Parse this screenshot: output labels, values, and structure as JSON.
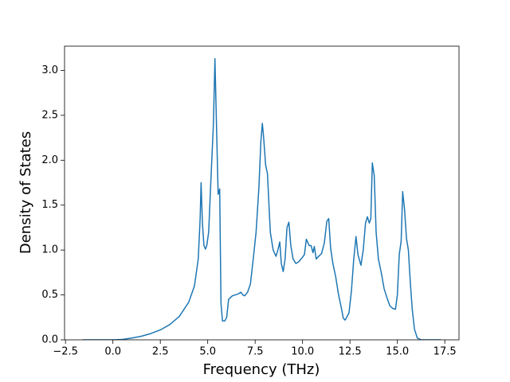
{
  "chart_data": {
    "type": "line",
    "xlabel": "Frequency (THz)",
    "ylabel": "Density of States",
    "x": [
      -1.6,
      0,
      0.5,
      1,
      1.5,
      2,
      2.5,
      3,
      3.5,
      4,
      4.3,
      4.5,
      4.6,
      4.65,
      4.72,
      4.8,
      4.88,
      4.95,
      5.05,
      5.15,
      5.3,
      5.38,
      5.45,
      5.55,
      5.63,
      5.7,
      5.78,
      5.9,
      6.0,
      6.1,
      6.3,
      6.6,
      6.75,
      6.85,
      6.95,
      7.1,
      7.25,
      7.4,
      7.55,
      7.7,
      7.8,
      7.88,
      7.95,
      8.05,
      8.15,
      8.3,
      8.45,
      8.6,
      8.7,
      8.8,
      8.88,
      8.98,
      9.08,
      9.18,
      9.28,
      9.38,
      9.5,
      9.65,
      9.8,
      10.0,
      10.1,
      10.2,
      10.35,
      10.45,
      10.55,
      10.62,
      10.72,
      10.85,
      11.0,
      11.15,
      11.28,
      11.38,
      11.48,
      11.6,
      11.75,
      11.9,
      12.05,
      12.15,
      12.25,
      12.45,
      12.58,
      12.7,
      12.82,
      12.92,
      13.08,
      13.2,
      13.32,
      13.42,
      13.52,
      13.6,
      13.68,
      13.78,
      13.88,
      14.0,
      14.15,
      14.3,
      14.45,
      14.6,
      14.75,
      14.9,
      15.0,
      15.1,
      15.2,
      15.28,
      15.38,
      15.48,
      15.58,
      15.68,
      15.78,
      15.9,
      16.05,
      16.25,
      17.3
    ],
    "values": [
      0,
      0,
      0.005,
      0.02,
      0.04,
      0.07,
      0.11,
      0.17,
      0.26,
      0.42,
      0.6,
      0.9,
      1.35,
      1.75,
      1.3,
      1.05,
      1.01,
      1.05,
      1.2,
      1.7,
      2.4,
      3.13,
      2.5,
      1.62,
      1.68,
      0.4,
      0.21,
      0.21,
      0.25,
      0.45,
      0.49,
      0.51,
      0.53,
      0.5,
      0.49,
      0.53,
      0.62,
      0.9,
      1.2,
      1.7,
      2.2,
      2.41,
      2.25,
      1.95,
      1.85,
      1.2,
      1.0,
      0.93,
      1.0,
      1.09,
      0.85,
      0.76,
      0.9,
      1.25,
      1.31,
      1.05,
      0.9,
      0.85,
      0.87,
      0.92,
      0.95,
      1.12,
      1.05,
      1.05,
      0.97,
      1.04,
      0.9,
      0.93,
      0.96,
      1.08,
      1.32,
      1.35,
      1.02,
      0.85,
      0.7,
      0.5,
      0.35,
      0.24,
      0.22,
      0.3,
      0.55,
      0.9,
      1.15,
      0.95,
      0.83,
      1.0,
      1.3,
      1.37,
      1.3,
      1.35,
      1.97,
      1.83,
      1.2,
      0.9,
      0.75,
      0.57,
      0.47,
      0.38,
      0.35,
      0.34,
      0.5,
      0.95,
      1.1,
      1.65,
      1.45,
      1.13,
      1.0,
      0.65,
      0.35,
      0.12,
      0.02,
      0,
      0
    ],
    "color": "#1f77b4",
    "xlim": [
      -2.55,
      18.25
    ],
    "xticks": [
      {
        "value": -2.5,
        "label": "−2.5"
      },
      {
        "value": 0,
        "label": "0.0"
      },
      2.5,
      {
        "value": 5,
        "label": "5.0"
      },
      7.5,
      {
        "value": 10,
        "label": "10.0"
      },
      12.5,
      {
        "value": 15,
        "label": "15.0"
      },
      17.5
    ],
    "ylim": [
      0,
      3.27
    ],
    "yticks": [
      {
        "value": 0,
        "label": "0.0"
      },
      0.5,
      {
        "value": 1,
        "label": "1.0"
      },
      1.5,
      {
        "value": 2,
        "label": "2.0"
      },
      2.5,
      {
        "value": 3,
        "label": "3.0"
      }
    ]
  }
}
